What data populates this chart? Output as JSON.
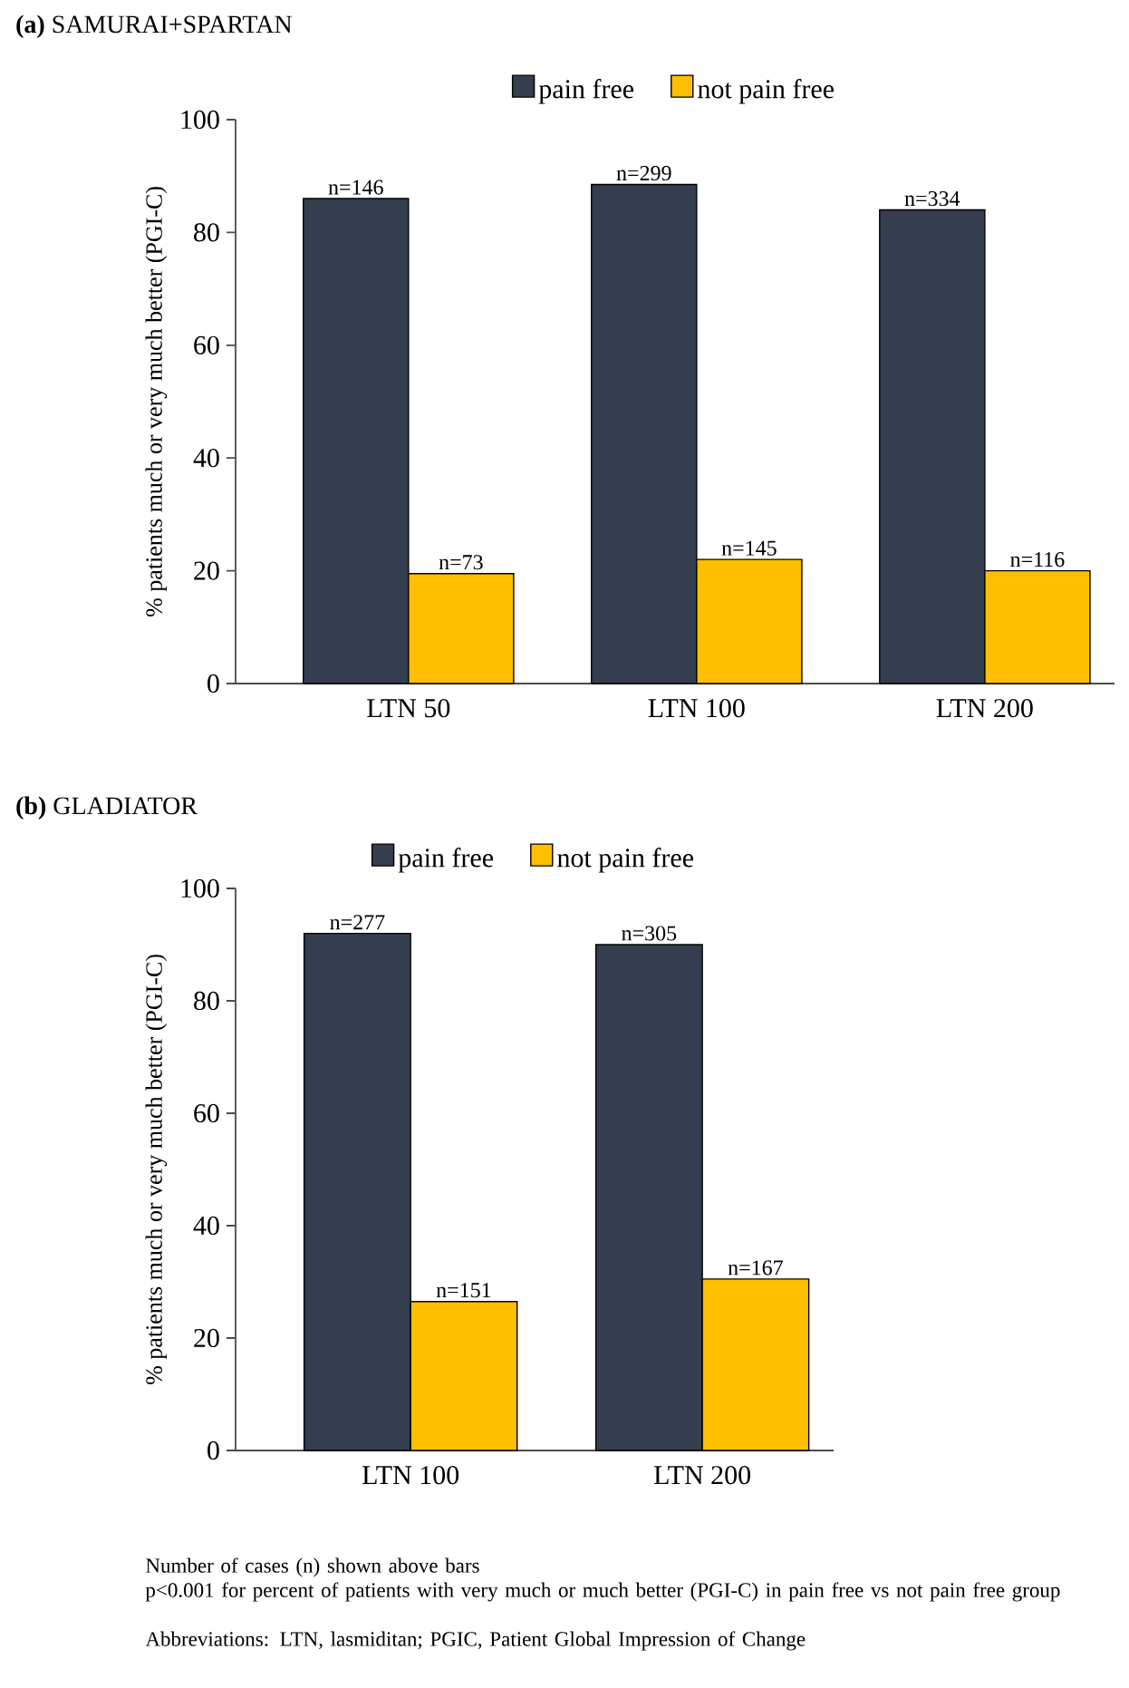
{
  "chart_data": [
    {
      "type": "bar",
      "title": "**(a)** SAMURAI+SPARTAN",
      "ylabel": "% patients much or very much better (PGI-C)",
      "categories": [
        "LTN 50",
        "LTN 100",
        "LTN 200"
      ],
      "ylim": [
        0,
        100
      ],
      "yticks": [
        0,
        20,
        40,
        60,
        80,
        100
      ],
      "legend": "top",
      "series": [
        {
          "name": "pain free",
          "color": "#343e4f",
          "values": [
            86,
            88.5,
            84
          ]
        },
        {
          "name": "not pain free",
          "color": "#fdbf00",
          "values": [
            19.5,
            22,
            20
          ]
        }
      ],
      "annotations": [
        {
          "text": "n=146",
          "x": "LTN 50",
          "y": 86
        },
        {
          "text": "n=299",
          "x": "LTN 100",
          "y": 88.5
        },
        {
          "text": "n=334",
          "x": "LTN 200",
          "y": 84
        },
        {
          "text": "n=73",
          "x": "LTN 50",
          "y": 19.5
        },
        {
          "text": "n=145",
          "x": "LTN 100",
          "y": 22
        },
        {
          "text": "n=116",
          "x": "LTN 200",
          "y": 20
        }
      ]
    },
    {
      "type": "bar",
      "title": "**(b)**     GLADIATOR",
      "ylabel": "% patients much or very much better (PGI-C)",
      "categories": [
        "LTN 100",
        "LTN 200"
      ],
      "ylim": [
        0,
        100
      ],
      "yticks": [
        0,
        20,
        40,
        60,
        80,
        100
      ],
      "legend": "top",
      "series": [
        {
          "name": "pain free",
          "color": "#343e4f",
          "values": [
            92,
            90
          ]
        },
        {
          "name": "not pain free",
          "color": "#fdbf00",
          "values": [
            26.5,
            30.5
          ]
        }
      ],
      "annotations": [
        {
          "text": "n=277",
          "x": "LTN 100",
          "y": 92
        },
        {
          "text": "n=305",
          "x": "LTN 200",
          "y": 90
        },
        {
          "text": "n=151",
          "x": "LTN 100",
          "y": 26.5
        },
        {
          "text": "n=167",
          "x": "LTN 200",
          "y": 30.5
        },
        "Number of cases (n) shown above bars",
        "p<0.001 for percent of patients with very much or much better (PGI-C) in pain free vs not pain free group",
        "Abbreviations: LTN, lasmiditan; PGIC, Patient Global Impression of Change"
      ]
    }
  ]
}
